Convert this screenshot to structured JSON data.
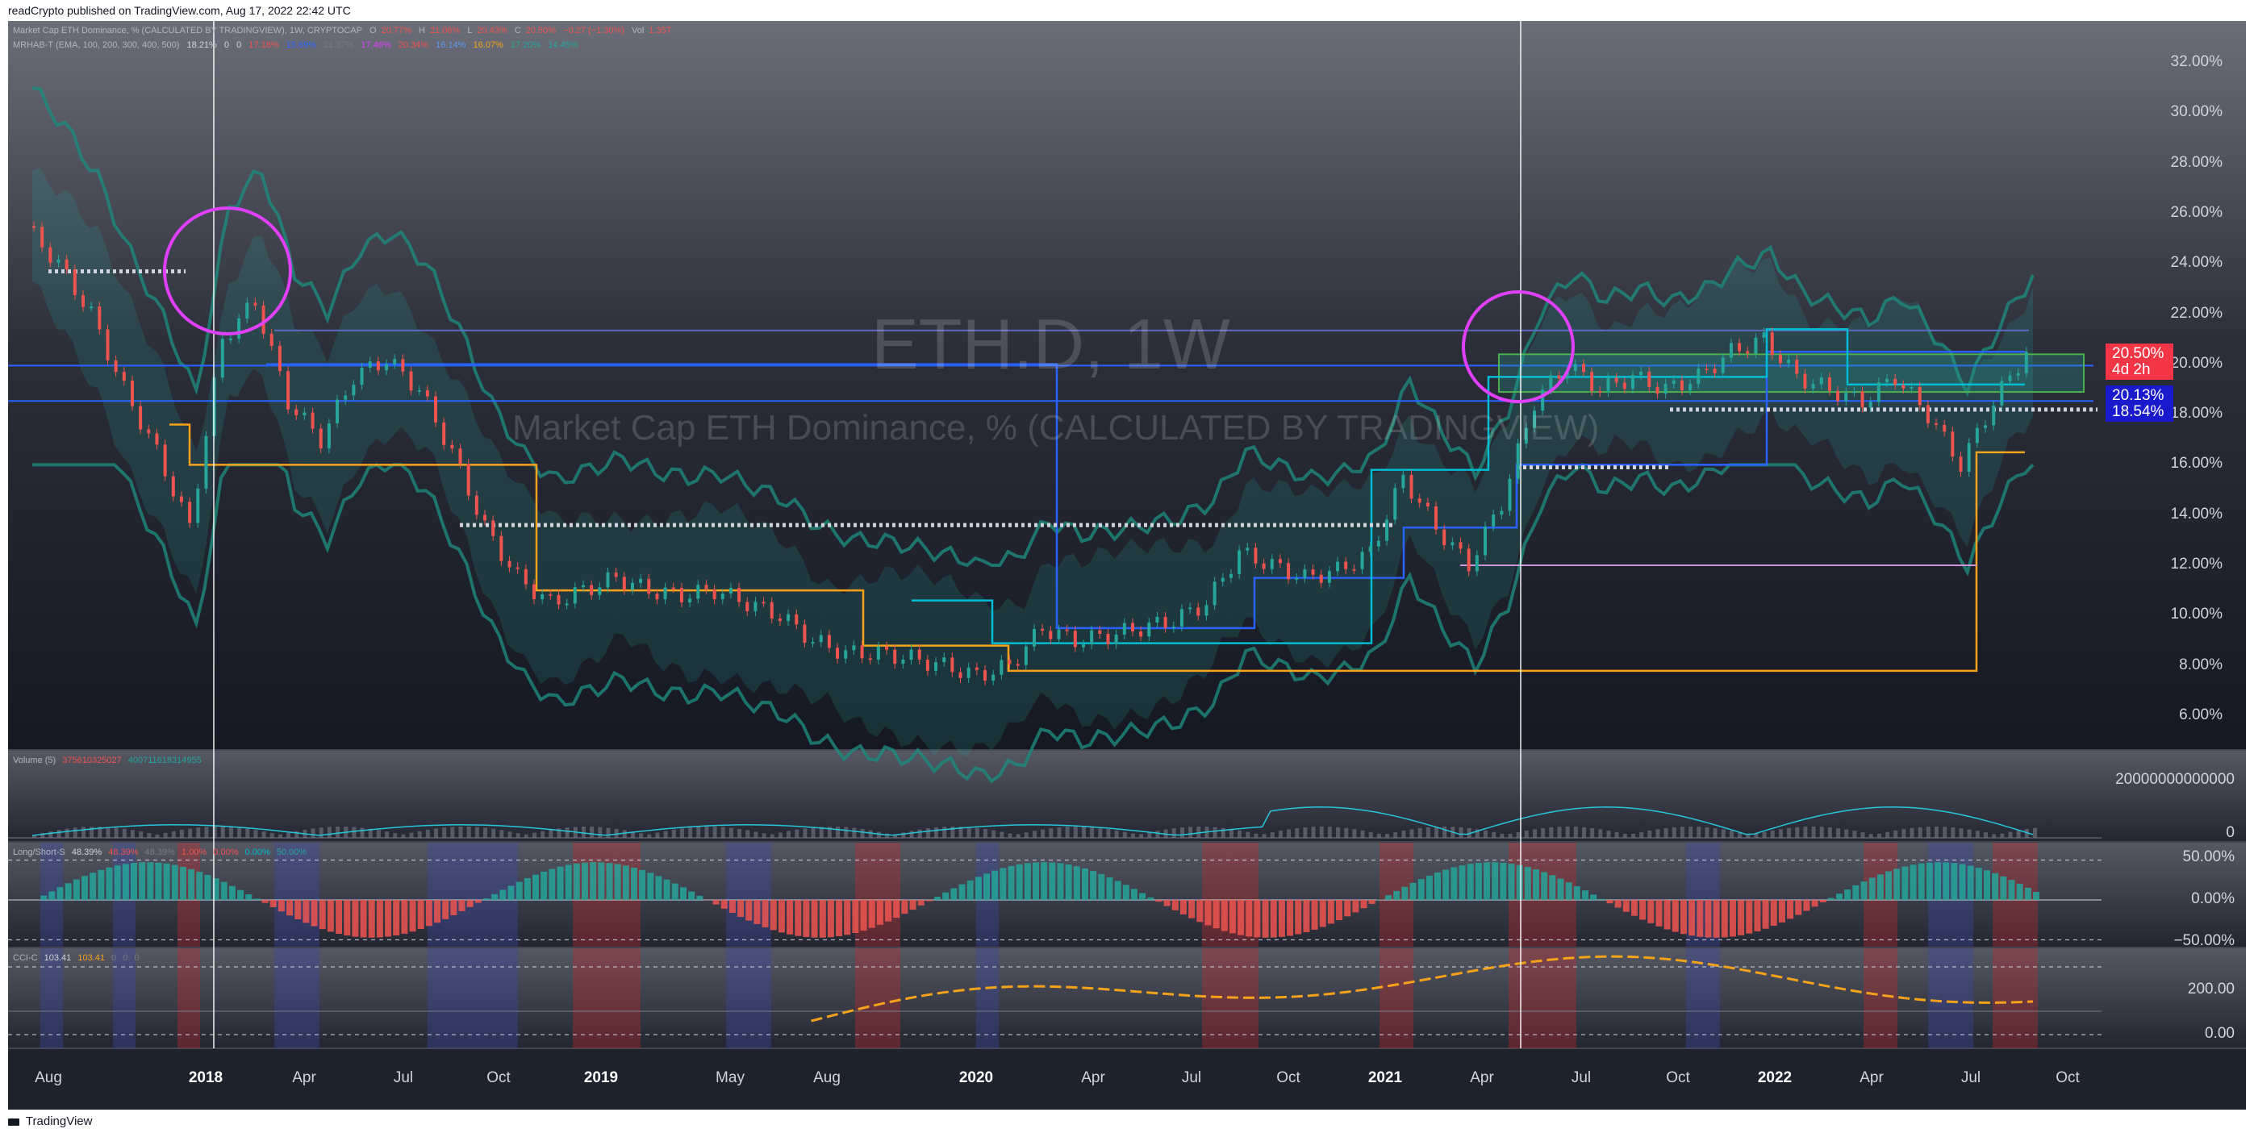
{
  "header": {
    "text": "readCrypto published on TradingView.com, Aug 17, 2022 22:42 UTC"
  },
  "footer": {
    "brand": "TradingView"
  },
  "legend": {
    "line1": {
      "symbol": "Market Cap ETH Dominance, % (CALCULATED BY TRADINGVIEW), 1W, CRYPTOCAP",
      "o_label": "O",
      "o_value": "20.77%",
      "h_label": "H",
      "h_value": "21.06%",
      "l_label": "L",
      "l_value": "20.43%",
      "c_label": "C",
      "c_value": "20.50%",
      "change": "−0.27 (−1.30%)",
      "vol_label": "Vol",
      "vol_value": "1.35T"
    },
    "line2": {
      "name": "MRHAB-T (EMA, 100, 200, 300, 400, 500)",
      "values": [
        "18.21%",
        "0",
        "0",
        "17.18%",
        "15.69%",
        "21.37%",
        "17.46%",
        "20.34%",
        "16.14%",
        "16.07%",
        "17.20%",
        "14.45%"
      ]
    }
  },
  "watermark": {
    "ticker": "ETH.D, 1W",
    "name": "Market Cap ETH Dominance, % (CALCULATED BY TRADINGVIEW)"
  },
  "price_axis": [
    "32.00%",
    "30.00%",
    "28.00%",
    "26.00%",
    "24.00%",
    "22.00%",
    "20.00%",
    "18.00%",
    "16.00%",
    "14.00%",
    "12.00%",
    "10.00%",
    "8.00%",
    "6.00%"
  ],
  "price_tags": [
    {
      "value": "20.50%",
      "color": "#f23645"
    },
    {
      "value": "4d 2h",
      "color": "#f23645"
    },
    {
      "value": "20.13%",
      "color": "#1a1acc"
    },
    {
      "value": "18.54%",
      "color": "#1a1acc"
    }
  ],
  "volume_pane": {
    "label": "Volume (5)",
    "value1": "375610325027",
    "value2": "400711618314955",
    "axis": [
      "20000000000000",
      "0"
    ]
  },
  "ls_pane": {
    "label": "Long/Short-S",
    "values": [
      "48.39%",
      "48.39%",
      "48.39%",
      "1.00%",
      "0.00%",
      "0.00%",
      "50.00%"
    ],
    "axis": [
      "50.00%",
      "0.00%",
      "−50.00%"
    ]
  },
  "cci_pane": {
    "label": "CCI-C",
    "values": [
      "103.41",
      "103.41",
      "0",
      "0",
      "0"
    ],
    "axis": [
      "200.00",
      "0.00"
    ]
  },
  "time_axis": [
    {
      "label": "Aug",
      "bold": false
    },
    {
      "label": "2018",
      "bold": true
    },
    {
      "label": "Apr",
      "bold": false
    },
    {
      "label": "Jul",
      "bold": false
    },
    {
      "label": "Oct",
      "bold": false
    },
    {
      "label": "2019",
      "bold": true
    },
    {
      "label": "May",
      "bold": false
    },
    {
      "label": "Aug",
      "bold": false
    },
    {
      "label": "2020",
      "bold": true
    },
    {
      "label": "Apr",
      "bold": false
    },
    {
      "label": "Jul",
      "bold": false
    },
    {
      "label": "Oct",
      "bold": false
    },
    {
      "label": "2021",
      "bold": true
    },
    {
      "label": "Apr",
      "bold": false
    },
    {
      "label": "Jul",
      "bold": false
    },
    {
      "label": "Oct",
      "bold": false
    },
    {
      "label": "2022",
      "bold": true
    },
    {
      "label": "Apr",
      "bold": false
    },
    {
      "label": "Jul",
      "bold": false
    },
    {
      "label": "Oct",
      "bold": false
    }
  ],
  "colors": {
    "bull": "#26a69a",
    "bear": "#ef5350",
    "background_top": "#2a2e39",
    "background_bottom": "#141722",
    "circle": "#e040fb",
    "blue_line": "#2962ff",
    "orange_line": "#f7a21b",
    "cyan_line": "#00bcd4"
  },
  "chart_data": {
    "type": "line",
    "title": "ETH.D, 1W",
    "subtitle": "Market Cap ETH Dominance, % (CALCULATED BY TRADINGVIEW)",
    "x": [
      "2017-07",
      "2017-08",
      "2017-09",
      "2017-10",
      "2017-11",
      "2017-12",
      "2018-01",
      "2018-02",
      "2018-03",
      "2018-04",
      "2018-05",
      "2018-06",
      "2018-07",
      "2018-08",
      "2018-09",
      "2018-10",
      "2018-11",
      "2018-12",
      "2019-01",
      "2019-02",
      "2019-03",
      "2019-04",
      "2019-05",
      "2019-06",
      "2019-07",
      "2019-08",
      "2019-09",
      "2019-10",
      "2019-11",
      "2019-12",
      "2020-01",
      "2020-02",
      "2020-03",
      "2020-04",
      "2020-05",
      "2020-06",
      "2020-07",
      "2020-08",
      "2020-09",
      "2020-10",
      "2020-11",
      "2020-12",
      "2021-01",
      "2021-02",
      "2021-03",
      "2021-04",
      "2021-05",
      "2021-06",
      "2021-07",
      "2021-08",
      "2021-09",
      "2021-10",
      "2021-11",
      "2021-12",
      "2022-01",
      "2022-02",
      "2022-03",
      "2022-04",
      "2022-05",
      "2022-06",
      "2022-07",
      "2022-08"
    ],
    "series": [
      {
        "values": [
          25.5,
          24.0,
          22.0,
          19.0,
          16.5,
          13.5,
          21.0,
          22.5,
          18.5,
          17.0,
          19.5,
          20.2,
          19.0,
          16.5,
          13.5,
          11.5,
          10.5,
          11.0,
          11.5,
          11.0,
          10.8,
          11.0,
          10.5,
          10.0,
          9.0,
          8.5,
          8.5,
          8.3,
          8.0,
          7.6,
          8.0,
          9.5,
          9.0,
          9.2,
          9.5,
          9.8,
          10.5,
          12.5,
          12.0,
          11.5,
          11.8,
          12.5,
          15.5,
          13.5,
          12.0,
          14.5,
          18.5,
          20.0,
          19.0,
          19.5,
          19.0,
          19.5,
          20.5,
          21.0,
          19.5,
          19.0,
          18.5,
          19.5,
          18.0,
          16.0,
          18.5,
          20.5
        ]
      }
    ],
    "xlabel": "",
    "ylabel": "",
    "ylim": [
      5.0,
      33.0
    ],
    "annotations": [
      "circle near 2018-01 high",
      "circle near 2021-05 high"
    ],
    "grid": false,
    "legend": "top-left"
  }
}
